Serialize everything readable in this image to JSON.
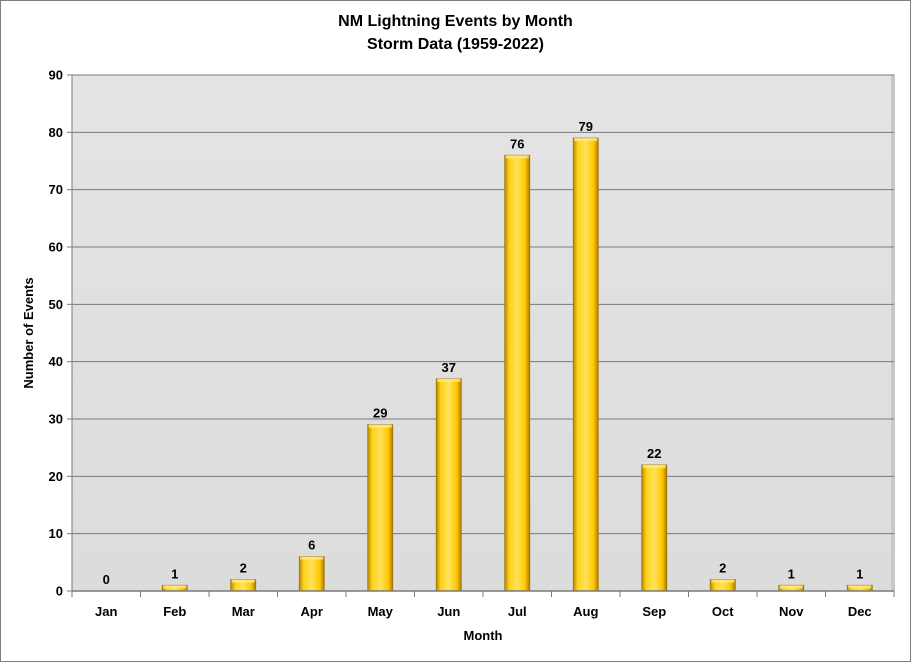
{
  "chart_data": {
    "type": "bar",
    "title": "NM Lightning Events by Month",
    "subtitle": "Storm Data (1959-2022)",
    "xlabel": "Month",
    "ylabel": "Number of Events",
    "categories": [
      "Jan",
      "Feb",
      "Mar",
      "Apr",
      "May",
      "Jun",
      "Jul",
      "Aug",
      "Sep",
      "Oct",
      "Nov",
      "Dec"
    ],
    "values": [
      0,
      1,
      2,
      6,
      29,
      37,
      76,
      79,
      22,
      2,
      1,
      1
    ],
    "ylim": [
      0,
      90
    ],
    "yticks": [
      "0",
      "10",
      "20",
      "30",
      "40",
      "50",
      "60",
      "70",
      "80",
      "90"
    ],
    "grid": true,
    "legend": "none",
    "bar_color": "#FFC600",
    "plot_background": "#E4E4E4"
  }
}
